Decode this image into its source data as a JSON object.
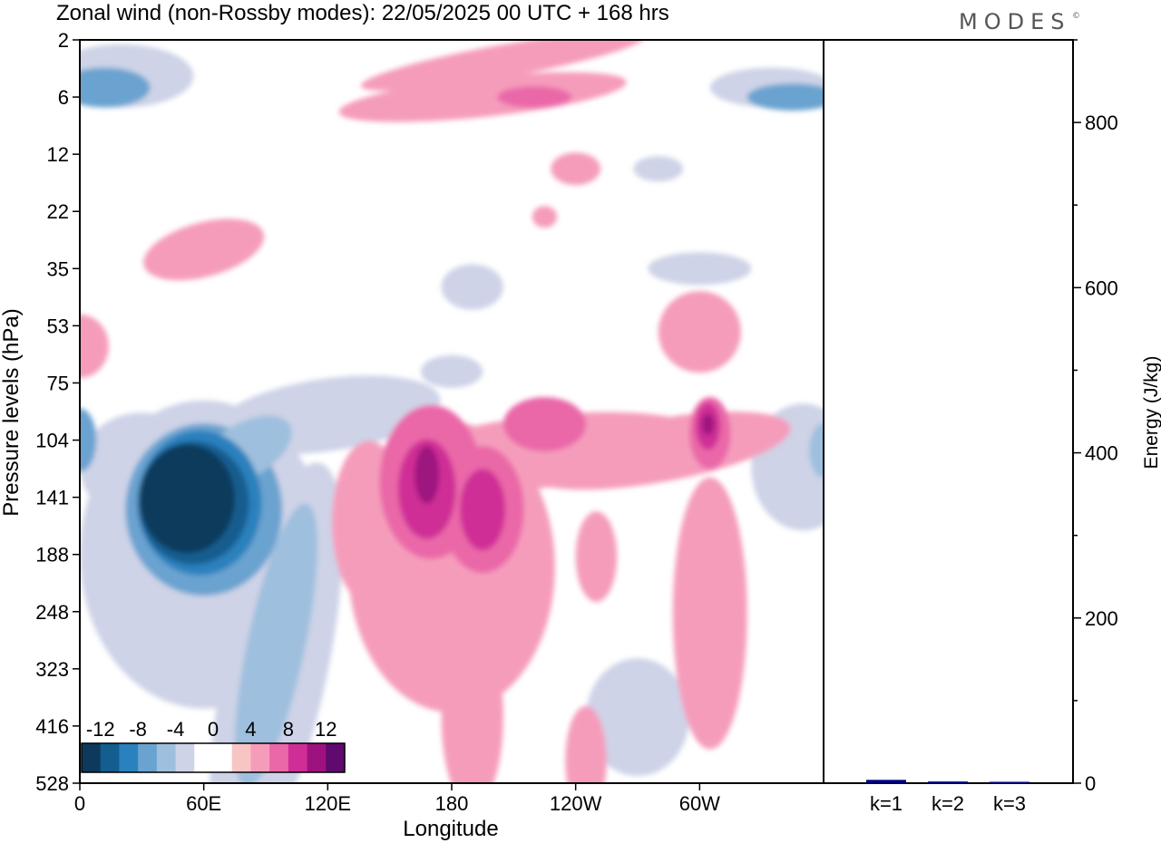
{
  "title": "Zonal wind (non-Rossby modes):  22/05/2025  00 UTC  + 168 hrs",
  "brand": "MODES",
  "brand_mark": "©",
  "chart_data": [
    {
      "type": "heatmap",
      "title": "Zonal wind (non-Rossby modes):  22/05/2025  00 UTC  + 168 hrs",
      "xlabel": "Longitude",
      "ylabel": "Pressure levels (hPa)",
      "x_ticks": [
        "0",
        "60E",
        "120E",
        "180",
        "120W",
        "60W"
      ],
      "x_tick_values": [
        0,
        60,
        120,
        180,
        240,
        300
      ],
      "xlim": [
        0,
        360
      ],
      "y_ticks": [
        "2",
        "6",
        "12",
        "22",
        "35",
        "53",
        "75",
        "104",
        "141",
        "188",
        "248",
        "323",
        "416",
        "528"
      ],
      "grid": false,
      "colorbar": {
        "labels": [
          "-12",
          "-8",
          "-4",
          "0",
          "4",
          "8",
          "12"
        ],
        "colors": [
          "#0d3a5c",
          "#135d8f",
          "#2b81bd",
          "#6aa3d0",
          "#9ebfde",
          "#ced3e7",
          "#ffffff",
          "#ffffff",
          "#f9c4c4",
          "#f59cbb",
          "#ea67a8",
          "#cf2e96",
          "#9e127f",
          "#5f0a6e"
        ],
        "placement": "bottom-left"
      },
      "features": [
        {
          "name": "easterly core",
          "lon": 60,
          "level": 141,
          "value": -14
        },
        {
          "name": "easterly belt",
          "lon_range": [
            0,
            130
          ],
          "level_range": [
            75,
            416
          ],
          "value": -6
        },
        {
          "name": "westerly core",
          "lon": 170,
          "level": 121,
          "value": 10
        },
        {
          "name": "westerly core",
          "lon": 195,
          "level": 141,
          "value": 8
        },
        {
          "name": "westerly core",
          "lon": 305,
          "level": 95,
          "value": 9
        },
        {
          "name": "easterly jet",
          "lon": 10,
          "level": 5,
          "value": -6
        },
        {
          "name": "easterly jet",
          "lon": 345,
          "level": 6,
          "value": -6
        }
      ]
    },
    {
      "type": "bar",
      "ylabel": "Energy (J/kg)",
      "ylim": [
        0,
        900
      ],
      "y_ticks": [
        0,
        200,
        400,
        600,
        800
      ],
      "categories": [
        "k=1",
        "k=2",
        "k=3"
      ],
      "values": [
        4,
        2,
        1
      ],
      "bar_color": "#00007a"
    }
  ]
}
